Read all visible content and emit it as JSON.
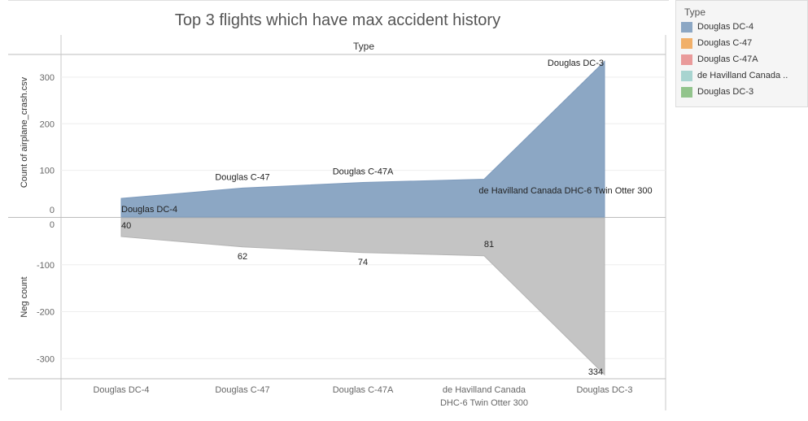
{
  "title": "Top 3 flights which have max accident history",
  "column_header": "Type",
  "legend": {
    "title": "Type",
    "items": [
      {
        "label": "Douglas DC-4",
        "color": "#8ca7c4"
      },
      {
        "label": "Douglas C-47",
        "color": "#f1b06a"
      },
      {
        "label": "Douglas C-47A",
        "color": "#e99a9a"
      },
      {
        "label": "de Havilland Canada ..",
        "color": "#a8d4d0"
      },
      {
        "label": "Douglas DC-3",
        "color": "#92c48c"
      }
    ]
  },
  "chart_data": {
    "type": "area",
    "categories": [
      "Douglas DC-4",
      "Douglas C-47",
      "Douglas C-47A",
      "de Havilland Canada DHC-6 Twin Otter 300",
      "Douglas DC-3"
    ],
    "category_tick_lines": [
      [
        "Douglas DC-4"
      ],
      [
        "Douglas C-47"
      ],
      [
        "Douglas C-47A"
      ],
      [
        "de Havilland Canada",
        "DHC-6 Twin Otter 300"
      ],
      [
        "Douglas DC-3"
      ]
    ],
    "top_panel": {
      "ylabel": "Count of airplane_crash.csv",
      "ylim": [
        0,
        340
      ],
      "yticks": [
        0,
        100,
        200,
        300
      ],
      "values": [
        40,
        62,
        74,
        81,
        334
      ],
      "color": "#8ca7c4",
      "point_labels": [
        "Douglas DC-4",
        "Douglas C-47",
        "Douglas C-47A",
        "de Havilland Canada DHC-6 Twin Otter 300",
        "Douglas DC-3"
      ]
    },
    "bottom_panel": {
      "ylabel": "Neg count",
      "ylim": [
        -345,
        0
      ],
      "yticks": [
        0,
        -100,
        -200,
        -300
      ],
      "values": [
        -40,
        -62,
        -74,
        -81,
        -334
      ],
      "color": "#c4c4c4",
      "point_labels": [
        "40",
        "62",
        "74",
        "81",
        "334"
      ]
    },
    "grid": true
  }
}
